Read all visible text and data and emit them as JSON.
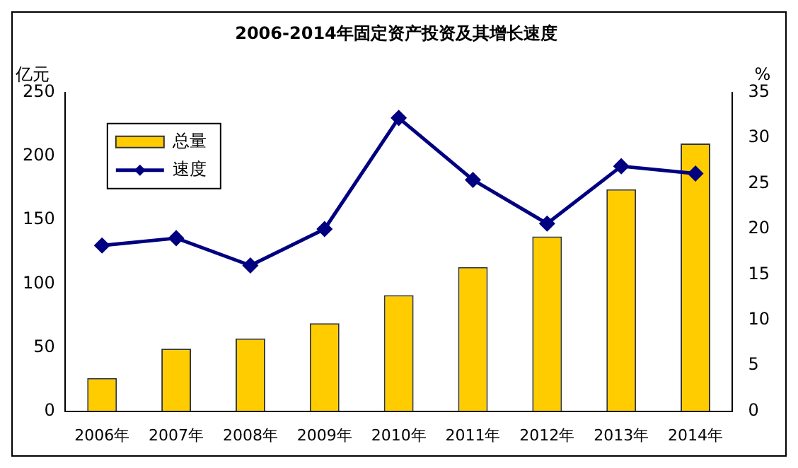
{
  "chart_data": {
    "type": "bar",
    "title": "2006-2014年固定资产投资及其增长速度",
    "ylabel": "亿元",
    "y2label": "%",
    "categories": [
      "2006年",
      "2007年",
      "2008年",
      "2009年",
      "2010年",
      "2011年",
      "2012年",
      "2013年",
      "2014年"
    ],
    "series": [
      {
        "name": "总量",
        "color": "#ffcc00",
        "values": [
          26,
          49,
          57,
          69,
          91,
          113,
          137,
          174,
          210
        ]
      },
      {
        "name": "速度",
        "type": "line",
        "axis": "y2",
        "color": "#000080",
        "values": [
          18.2,
          19.0,
          16.0,
          20.0,
          32.2,
          25.4,
          20.6,
          26.9,
          26.1
        ]
      }
    ],
    "ylim": [
      0,
      250
    ],
    "yticks": [
      0,
      50,
      100,
      150,
      200,
      250
    ],
    "y2lim": [
      0,
      35
    ],
    "y2ticks": [
      0,
      5,
      10,
      15,
      20,
      25,
      30,
      35
    ],
    "legend": "top left",
    "marker": "diamond",
    "grid": false
  }
}
